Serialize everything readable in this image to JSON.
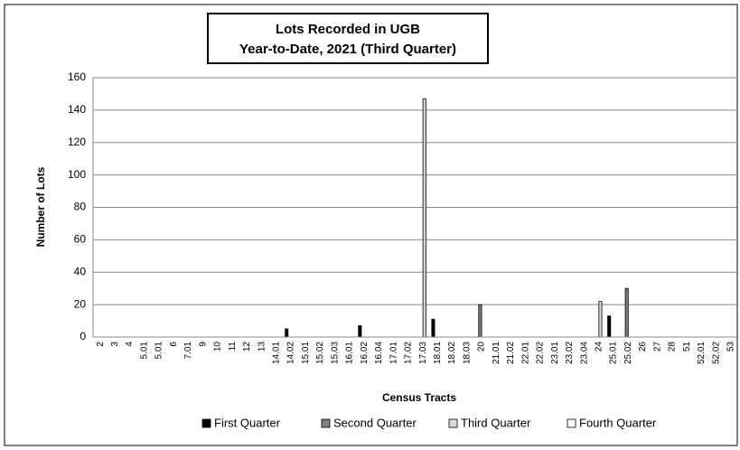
{
  "chart_data": {
    "type": "bar",
    "title": "Lots Recorded in UGB",
    "subtitle": "Year-to-Date, 2021 (Third Quarter)",
    "x_label": "Census Tracts",
    "y_label": "Number of Lots",
    "categories": [
      "2",
      "3",
      "4",
      "5.01",
      "5.01",
      "6",
      "7.01",
      "9",
      "10",
      "11",
      "12",
      "13",
      "14.01",
      "14.02",
      "15.01",
      "15.02",
      "15.03",
      "16.01",
      "16.02",
      "16.04",
      "17.01",
      "17.02",
      "17.03",
      "18.01",
      "18.02",
      "18.03",
      "20",
      "21.01",
      "21.02",
      "22.01",
      "22.02",
      "23.01",
      "23.02",
      "23.04",
      "24",
      "25.01",
      "25.02",
      "26",
      "27",
      "28",
      "51",
      "52.01",
      "52.02",
      "53"
    ],
    "series": [
      {
        "name": "First Quarter",
        "color": "#000000",
        "values": [
          0,
          0,
          0,
          0,
          0,
          0,
          0,
          0,
          0,
          0,
          0,
          0,
          0,
          5,
          0,
          0,
          0,
          0,
          7,
          0,
          0,
          0,
          0,
          11,
          0,
          0,
          0,
          0,
          0,
          0,
          0,
          0,
          0,
          0,
          0,
          13,
          0,
          0,
          0,
          0,
          0,
          0,
          0,
          0
        ]
      },
      {
        "name": "Second Quarter",
        "color": "#808080",
        "values": [
          0,
          0,
          0,
          0,
          0,
          0,
          0,
          0,
          0,
          0,
          0,
          0,
          0,
          0,
          0,
          0,
          0,
          0,
          0,
          0,
          0,
          0,
          0,
          0,
          0,
          0,
          20,
          0,
          0,
          0,
          0,
          0,
          0,
          0,
          0,
          0,
          30,
          0,
          0,
          0,
          0,
          0,
          0,
          0
        ]
      },
      {
        "name": "Third Quarter",
        "color": "#d9d9d9",
        "values": [
          0,
          0,
          0,
          0,
          0,
          0,
          0,
          0,
          0,
          0,
          0,
          0,
          0,
          0,
          0,
          0,
          0,
          0,
          0,
          0,
          0,
          0,
          147,
          0,
          0,
          0,
          0,
          0,
          0,
          0,
          0,
          0,
          0,
          0,
          22,
          0,
          0,
          0,
          0,
          0,
          0,
          0,
          0,
          0
        ]
      },
      {
        "name": "Fourth Quarter",
        "color": "#ffffff",
        "values": [
          0,
          0,
          0,
          0,
          0,
          0,
          0,
          0,
          0,
          0,
          0,
          0,
          0,
          0,
          0,
          0,
          0,
          0,
          0,
          0,
          0,
          0,
          0,
          0,
          0,
          0,
          0,
          0,
          0,
          0,
          0,
          0,
          0,
          0,
          0,
          0,
          0,
          0,
          0,
          0,
          0,
          0,
          0,
          0
        ]
      }
    ],
    "ylim": [
      0,
      160
    ],
    "yticks": [
      0,
      20,
      40,
      60,
      80,
      100,
      120,
      140,
      160
    ],
    "grid": true,
    "legend": "bottom"
  }
}
